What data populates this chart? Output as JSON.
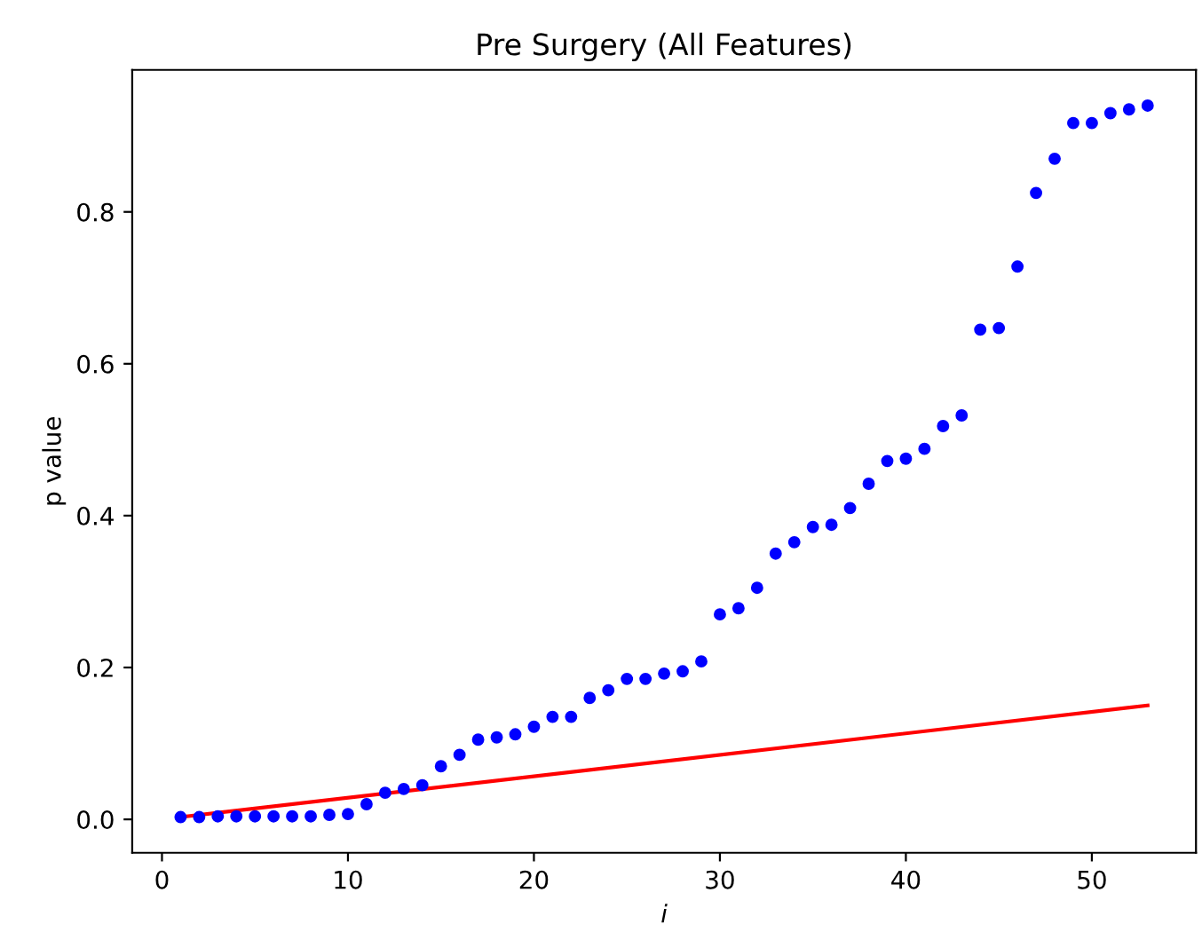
{
  "chart_data": {
    "type": "scatter",
    "title": "Pre Surgery (All Features)",
    "xlabel": "i",
    "ylabel": "p value",
    "xlim": [
      -1.6,
      55.6
    ],
    "ylim": [
      -0.044,
      0.987
    ],
    "xticks": [
      0,
      10,
      20,
      30,
      40,
      50
    ],
    "yticks": [
      {
        "value": 0,
        "label": "0.0"
      },
      {
        "value": 0.2,
        "label": "0.2"
      },
      {
        "value": 0.4,
        "label": "0.4"
      },
      {
        "value": 0.6,
        "label": "0.6"
      },
      {
        "value": 0.8,
        "label": "0.8"
      }
    ],
    "grid": false,
    "legend": false,
    "series": [
      {
        "color": "#0000ff",
        "marker": "circle",
        "x": [
          1,
          2,
          3,
          4,
          5,
          6,
          7,
          8,
          9,
          10,
          11,
          12,
          13,
          14,
          15,
          16,
          17,
          18,
          19,
          20,
          21,
          22,
          23,
          24,
          25,
          26,
          27,
          28,
          29,
          30,
          31,
          32,
          33,
          34,
          35,
          36,
          37,
          38,
          39,
          40,
          41,
          42,
          43,
          44,
          45,
          46,
          47,
          48,
          49,
          50,
          51,
          52,
          53
        ],
        "values": [
          0.003,
          0.003,
          0.004,
          0.004,
          0.004,
          0.004,
          0.004,
          0.004,
          0.006,
          0.007,
          0.02,
          0.035,
          0.04,
          0.045,
          0.07,
          0.085,
          0.105,
          0.108,
          0.112,
          0.122,
          0.135,
          0.135,
          0.16,
          0.17,
          0.185,
          0.185,
          0.192,
          0.195,
          0.208,
          0.27,
          0.278,
          0.305,
          0.35,
          0.365,
          0.385,
          0.388,
          0.41,
          0.442,
          0.472,
          0.475,
          0.488,
          0.518,
          0.532,
          0.645,
          0.647,
          0.728,
          0.825,
          0.87,
          0.917,
          0.917,
          0.93,
          0.935,
          0.94
        ]
      },
      {
        "type": "line",
        "color": "#ff0000",
        "line_style": "solid",
        "x": [
          1,
          53
        ],
        "values": [
          0.003,
          0.15
        ]
      }
    ]
  }
}
